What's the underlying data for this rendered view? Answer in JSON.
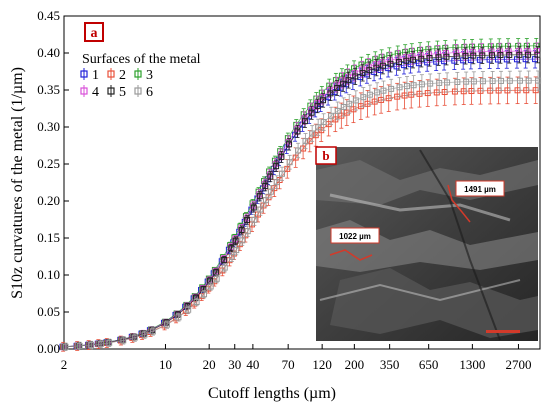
{
  "chart_data": {
    "type": "line",
    "panel_label": "a",
    "xlabel": "Cutoff lengths (µm)",
    "ylabel": "S10z curvatures of the metal (1/µm)",
    "ylim": [
      0,
      0.45
    ],
    "x_scale": "log",
    "xlim": [
      2,
      3800
    ],
    "x_ticks": [
      2,
      10,
      20,
      30,
      40,
      70,
      120,
      200,
      350,
      650,
      1300,
      2700
    ],
    "y_ticks": [
      0.0,
      0.05,
      0.1,
      0.15,
      0.2,
      0.25,
      0.3,
      0.35,
      0.4,
      0.45
    ],
    "x": [
      2,
      2.5,
      3,
      3.5,
      4,
      5,
      6,
      7,
      8,
      10,
      12,
      14,
      16,
      18,
      20,
      22,
      25,
      28,
      30,
      33,
      36,
      40,
      44,
      48,
      52,
      57,
      62,
      70,
      80,
      90,
      100,
      110,
      120,
      135,
      150,
      165,
      180,
      200,
      225,
      250,
      280,
      310,
      350,
      400,
      450,
      500,
      570,
      650,
      750,
      850,
      1000,
      1150,
      1300,
      1500,
      1750,
      2000,
      2300,
      2700,
      3100,
      3600
    ],
    "legend_title": "Surfaces of the metal",
    "legend_position": "top-left",
    "grid": false,
    "series": [
      {
        "name": "1",
        "color": "#1f1fd8",
        "plateau": 0.392,
        "err": 0.012,
        "early_err": 0.004
      },
      {
        "name": "2",
        "color": "#e8503a",
        "plateau": 0.35,
        "err": 0.018,
        "early_err": 0.006
      },
      {
        "name": "3",
        "color": "#2aa02a",
        "plateau": 0.41,
        "err": 0.01,
        "early_err": 0.003
      },
      {
        "name": "4",
        "color": "#d84fd8",
        "plateau": 0.403,
        "err": 0.011,
        "early_err": 0.004
      },
      {
        "name": "5",
        "color": "#222222",
        "plateau": 0.398,
        "err": 0.011,
        "early_err": 0.004
      },
      {
        "name": "6",
        "color": "#9a9a9a",
        "plateau": 0.363,
        "err": 0.013,
        "early_err": 0.005
      }
    ],
    "inset": {
      "label": "b",
      "annotations": [
        "1022 µm",
        "1491 µm"
      ]
    }
  },
  "colors": {
    "panel_label_border": "#c00000",
    "panel_label_text": "#c00000",
    "inset_annotation": "#d23a2a"
  }
}
